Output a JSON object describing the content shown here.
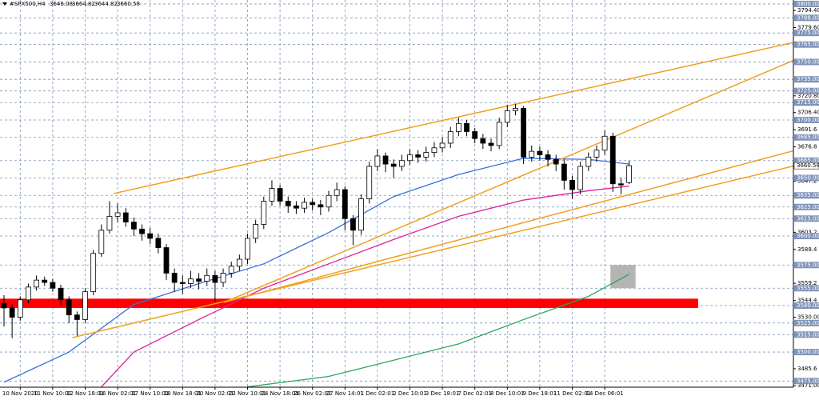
{
  "chart_data": {
    "type": "candlestick",
    "symbol": "#SPX500,H4",
    "ylim": [
      3469.7,
      3803.4
    ],
    "categories": [
      null,
      null,
      "10 Nov 2020",
      null,
      null,
      null,
      "11 Nov 10:01",
      null,
      null,
      null,
      "12 Nov 18:01",
      null,
      null,
      null,
      "16 Nov 02:01",
      null,
      null,
      null,
      "17 Nov 10:01",
      null,
      null,
      null,
      "18 Nov 18:01",
      null,
      null,
      null,
      "20 Nov 02:01",
      null,
      null,
      null,
      "23 Nov 10:01",
      null,
      null,
      null,
      "24 Nov 18:01",
      null,
      null,
      null,
      "26 Nov 02:01",
      null,
      null,
      null,
      "27 Nov 14:01",
      null,
      null,
      null,
      "1 Dec 02:01",
      null,
      null,
      null,
      "2 Dec 10:01",
      null,
      null,
      null,
      "3 Dec 18:01",
      null,
      null,
      null,
      "7 Dec 02:01",
      null,
      null,
      null,
      "8 Dec 10:01",
      null,
      null,
      null,
      "9 Dec 18:01",
      null,
      null,
      null,
      "11 Dec 02:01",
      null,
      null,
      null,
      "14 Dec 06:01",
      null,
      null,
      null
    ],
    "open": [
      3542,
      3538,
      3530,
      3545,
      3556,
      3562,
      3560,
      3555,
      3545,
      3532,
      3528,
      3552,
      3585,
      3605,
      3617,
      3620,
      3612,
      3606,
      3602,
      3598,
      3590,
      3568,
      3560,
      3559,
      3563,
      3561,
      3566,
      3560,
      3568,
      3574,
      3580,
      3598,
      3610,
      3630,
      3641,
      3630,
      3626,
      3624,
      3629,
      3627,
      3625,
      3635,
      3640,
      3615,
      3605,
      3632,
      3660,
      3669,
      3662,
      3660,
      3665,
      3670,
      3668,
      3672,
      3676,
      3680,
      3690,
      3697,
      3690,
      3684,
      3680,
      3678,
      3698,
      3708,
      3710,
      3668,
      3673,
      3670,
      3666,
      3662,
      3648,
      3640,
      3660,
      3668,
      3674,
      3686,
      3645,
      3646.08
    ],
    "high": [
      3549,
      3541,
      3548,
      3559,
      3566,
      3565,
      3563,
      3558,
      3548,
      3535,
      3555,
      3588,
      3610,
      3630,
      3628,
      3624,
      3616,
      3610,
      3607,
      3602,
      3593,
      3572,
      3566,
      3570,
      3568,
      3572,
      3570,
      3572,
      3578,
      3584,
      3602,
      3614,
      3634,
      3648,
      3644,
      3634,
      3630,
      3633,
      3632,
      3631,
      3639,
      3646,
      3643,
      3618,
      3636,
      3664,
      3675,
      3672,
      3666,
      3670,
      3675,
      3674,
      3677,
      3681,
      3685,
      3694,
      3702,
      3700,
      3693,
      3688,
      3684,
      3702,
      3713,
      3714,
      3712,
      3678,
      3677,
      3674,
      3670,
      3666,
      3652,
      3664,
      3672,
      3678,
      3691,
      3689,
      3650,
      3664.82
    ],
    "low": [
      3522,
      3512,
      3527,
      3542,
      3553,
      3557,
      3552,
      3540,
      3525,
      3514,
      3525,
      3549,
      3582,
      3602,
      3612,
      3608,
      3600,
      3596,
      3593,
      3585,
      3562,
      3552,
      3550,
      3555,
      3554,
      3557,
      3543,
      3556,
      3564,
      3570,
      3576,
      3594,
      3606,
      3626,
      3626,
      3620,
      3619,
      3620,
      3622,
      3618,
      3621,
      3630,
      3605,
      3592,
      3601,
      3628,
      3656,
      3655,
      3650,
      3656,
      3661,
      3663,
      3664,
      3668,
      3672,
      3676,
      3686,
      3686,
      3680,
      3675,
      3673,
      3675,
      3694,
      3704,
      3662,
      3664,
      3665,
      3660,
      3656,
      3640,
      3632,
      3636,
      3656,
      3664,
      3670,
      3638,
      3636,
      3644.82
    ],
    "close": [
      3538,
      3530,
      3545,
      3556,
      3562,
      3560,
      3555,
      3545,
      3532,
      3528,
      3552,
      3585,
      3605,
      3617,
      3620,
      3612,
      3606,
      3602,
      3598,
      3590,
      3568,
      3560,
      3559,
      3563,
      3561,
      3566,
      3560,
      3568,
      3574,
      3580,
      3598,
      3610,
      3630,
      3641,
      3630,
      3626,
      3624,
      3629,
      3627,
      3625,
      3635,
      3640,
      3615,
      3605,
      3632,
      3660,
      3669,
      3662,
      3660,
      3665,
      3670,
      3668,
      3672,
      3676,
      3680,
      3690,
      3697,
      3690,
      3684,
      3680,
      3678,
      3698,
      3708,
      3710,
      3668,
      3673,
      3670,
      3666,
      3662,
      3648,
      3640,
      3660,
      3668,
      3674,
      3686,
      3645,
      3644,
      3660.58
    ],
    "series": [
      {
        "color": "#3a6fd8",
        "x": [
          0,
          8,
          16,
          24,
          32,
          40,
          48,
          56,
          64,
          72,
          77
        ],
        "values": [
          3474,
          3500,
          3541,
          3559,
          3576,
          3603,
          3634,
          3653,
          3667,
          3666,
          3662
        ]
      },
      {
        "color": "#e0209a",
        "x": [
          12,
          16,
          24,
          32,
          40,
          48,
          56,
          64,
          72,
          77
        ],
        "values": [
          3470,
          3500,
          3528,
          3555,
          3576,
          3597,
          3617,
          3631,
          3639,
          3643
        ]
      },
      {
        "color": "#2aa660",
        "x": [
          30,
          40,
          48,
          56,
          64,
          72,
          77
        ],
        "values": [
          3470,
          3479,
          3493,
          3507,
          3528,
          3548,
          3567
        ]
      }
    ],
    "trendlines": [
      {
        "color": "#f0a020",
        "x": [
          13.5,
          100.4
        ],
        "y": [
          3636.6,
          3771.7
        ]
      },
      {
        "color": "#f0a020",
        "x": [
          8.4,
          100.4
        ],
        "y": [
          3512.4,
          3665.5
        ]
      },
      {
        "color": "#f0a020",
        "x": [
          27.1,
          100.4
        ],
        "y": [
          3542.8,
          3760.7
        ]
      },
      {
        "color": "#f0a020",
        "x": [
          27.1,
          100.4
        ],
        "y": [
          3542.8,
          3679.3
        ]
      }
    ],
    "zones": [
      {
        "color": "#ff0000",
        "x": [
          -0.5,
          85.5
        ],
        "y": [
          3538,
          3546
        ]
      },
      {
        "color": "#b4b4b4",
        "x": [
          74.7,
          77.8
        ],
        "y": [
          3555,
          3575
        ]
      }
    ],
    "yticks": [
      {
        "value": 3794.4,
        "label": "3794.40"
      },
      {
        "value": 3779.6,
        "label": "3779.60"
      },
      {
        "value": 3720.8,
        "label": "3720.80"
      },
      {
        "value": 3706.4,
        "label": "3706.40"
      },
      3691.6,
      3676.8,
      3647.2,
      3603.2,
      3588.4,
      3559.2,
      3544.4,
      {
        "value": 3530,
        "label": "3530.00"
      },
      3485.6,
      {
        "value": 3471,
        "label": "3471.00"
      }
    ],
    "levels": [
      {
        "value": 3800,
        "label": "3800.00"
      },
      {
        "value": 3788,
        "label": "3788.00"
      },
      {
        "value": 3775,
        "label": "3775.00"
      },
      {
        "value": 3765,
        "label": "3765.00"
      },
      {
        "value": 3750,
        "label": "3750.00"
      },
      {
        "value": 3735,
        "label": "3735.00"
      },
      {
        "value": 3725,
        "label": "3725.00"
      },
      {
        "value": 3715,
        "label": "3715.00"
      },
      {
        "value": 3700,
        "label": "3700.00"
      },
      {
        "value": 3685,
        "label": "3685.00"
      },
      {
        "value": 3665,
        "label": "3665.00"
      },
      {
        "value": 3650,
        "label": "3650.00"
      },
      {
        "value": 3635,
        "label": "3635.00"
      },
      {
        "value": 3625,
        "label": "3625.00"
      },
      {
        "value": 3615,
        "label": "3615.00"
      },
      {
        "value": 3600,
        "label": "3600.00"
      },
      {
        "value": 3575,
        "label": "3575.00"
      },
      {
        "value": 3555,
        "label": "3555.00"
      },
      {
        "value": 3540,
        "label": "3540.00"
      },
      {
        "value": 3525,
        "label": "3525.00"
      },
      {
        "value": 3515,
        "label": "3515.00"
      },
      {
        "value": 3500,
        "label": "3500.00"
      },
      {
        "value": 3475,
        "label": "3475.00"
      }
    ],
    "level_color": "#7f93b8",
    "grid": true
  }
}
